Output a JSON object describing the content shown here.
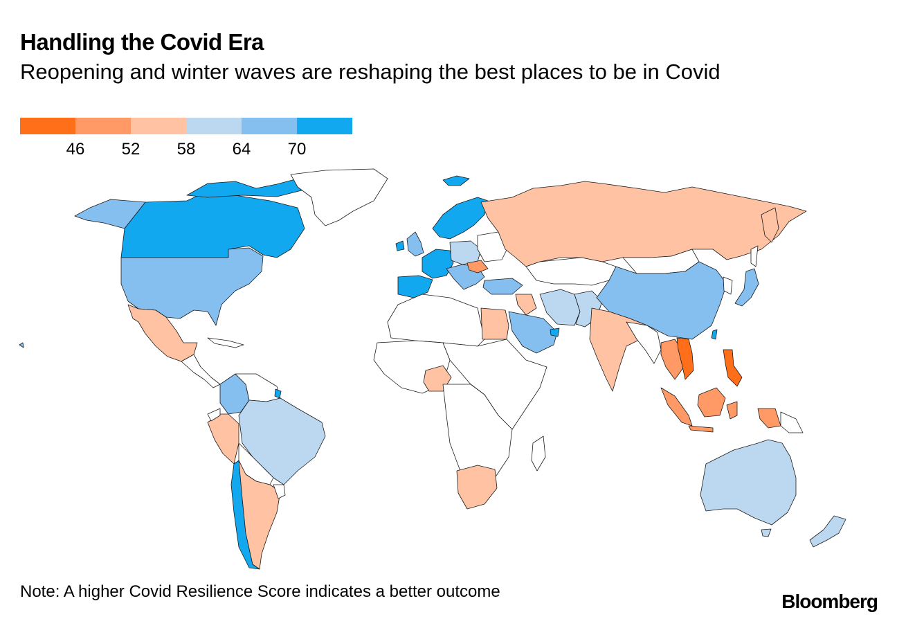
{
  "header": {
    "title": "Handling the Covid Era",
    "subtitle": "Reopening and winter waves are reshaping the best places to be in Covid"
  },
  "legend": {
    "colors": [
      "#ff6f1a",
      "#ff9a66",
      "#ffc2a3",
      "#bcd8f1",
      "#85bff0",
      "#12a8ef"
    ],
    "ticks": [
      "46",
      "52",
      "58",
      "64",
      "70"
    ]
  },
  "map_colors": {
    "no_data": "#ffffff",
    "score_lt_46": "#ff6f1a",
    "score_46_52": "#ff9a66",
    "score_52_58": "#ffc2a3",
    "score_58_64": "#bcd8f1",
    "score_64_70": "#85bff0",
    "score_gt_70": "#12a8ef"
  },
  "footer": {
    "note": "Note: A higher Covid Resilience Score indicates a better outcome",
    "brand": "Bloomberg"
  }
}
